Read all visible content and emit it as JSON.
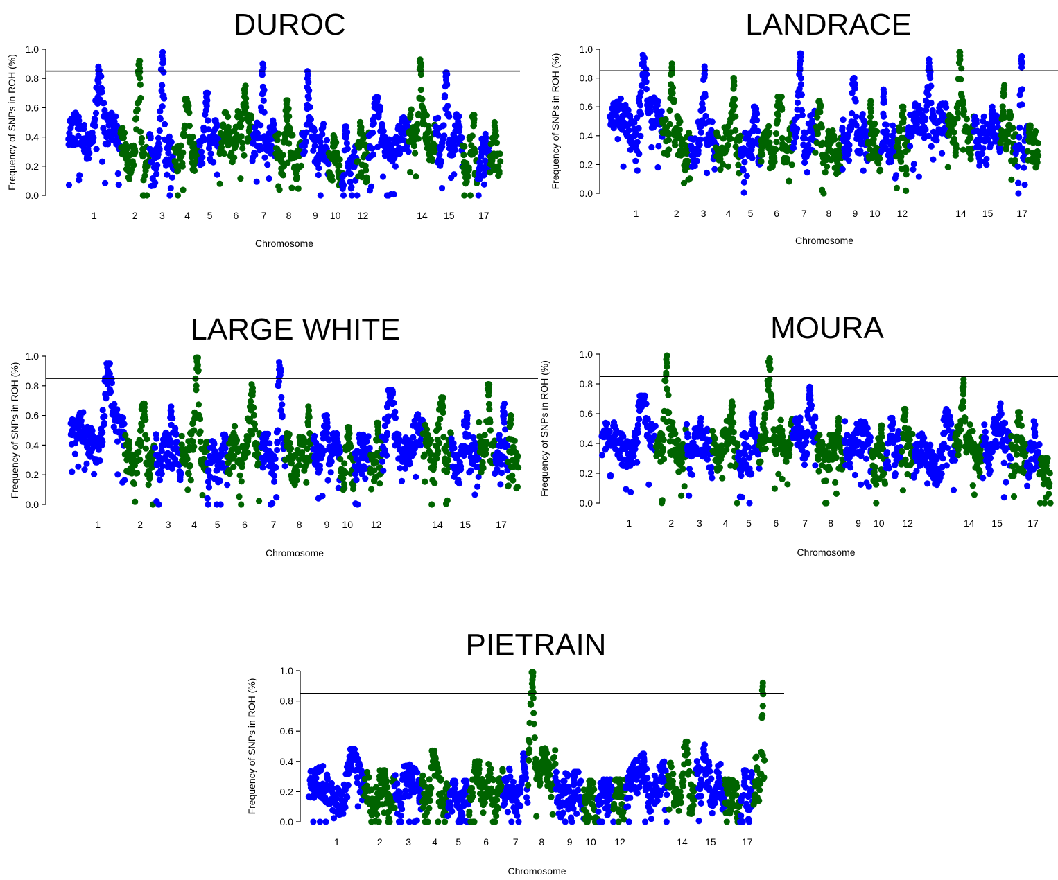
{
  "colors": {
    "series_a": "#0000ff",
    "series_b": "#006400",
    "threshold_line": "#000000"
  },
  "chart_data": [
    {
      "type": "scatter",
      "title": "DUROC",
      "xlabel": "Chromosome",
      "ylabel": "Frequency of SNPs in ROH (%)",
      "ylim": [
        0,
        1.0
      ],
      "yticks": [
        "0.0",
        "0.2",
        "0.4",
        "0.6",
        "0.8",
        "1.0"
      ],
      "xtick_labels": [
        "1",
        "2",
        "3",
        "4",
        "5",
        "6",
        "7",
        "8",
        "9",
        "10",
        "12",
        "14",
        "15",
        "17"
      ],
      "threshold": 0.85,
      "chromosomes": [
        {
          "chr": "1",
          "color": "blue",
          "level": 0.38,
          "peak": 0.88
        },
        {
          "chr": "2",
          "color": "green",
          "level": 0.28,
          "peak": 0.92
        },
        {
          "chr": "3",
          "color": "blue",
          "level": 0.25,
          "peak": 0.98
        },
        {
          "chr": "4",
          "color": "green",
          "level": 0.32,
          "peak": 0.66
        },
        {
          "chr": "5",
          "color": "blue",
          "level": 0.35,
          "peak": 0.7
        },
        {
          "chr": "6",
          "color": "green",
          "level": 0.4,
          "peak": 0.75
        },
        {
          "chr": "7",
          "color": "blue",
          "level": 0.33,
          "peak": 0.9
        },
        {
          "chr": "8",
          "color": "green",
          "level": 0.28,
          "peak": 0.65
        },
        {
          "chr": "9",
          "color": "blue",
          "level": 0.32,
          "peak": 0.85
        },
        {
          "chr": "10",
          "color": "green",
          "level": 0.22,
          "peak": 0.41
        },
        {
          "chr": "11",
          "color": "blue",
          "level": 0.22,
          "peak": 0.47
        },
        {
          "chr": "12",
          "color": "green",
          "level": 0.25,
          "peak": 0.5
        },
        {
          "chr": "13",
          "color": "blue",
          "level": 0.35,
          "peak": 0.67
        },
        {
          "chr": "14",
          "color": "green",
          "level": 0.4,
          "peak": 0.93
        },
        {
          "chr": "15",
          "color": "blue",
          "level": 0.38,
          "peak": 0.84
        },
        {
          "chr": "16",
          "color": "green",
          "level": 0.25,
          "peak": 0.55
        },
        {
          "chr": "17",
          "color": "blue",
          "level": 0.22,
          "peak": 0.42
        },
        {
          "chr": "18",
          "color": "green",
          "level": 0.25,
          "peak": 0.5
        }
      ]
    },
    {
      "type": "scatter",
      "title": "LANDRACE",
      "xlabel": "Chromosome",
      "ylabel": "Frequency of SNPs in ROH (%)",
      "ylim": [
        0,
        1.0
      ],
      "yticks": [
        "0.0",
        "0.2",
        "0.4",
        "0.6",
        "0.8",
        "1.0"
      ],
      "xtick_labels": [
        "1",
        "2",
        "3",
        "4",
        "5",
        "6",
        "7",
        "8",
        "9",
        "10",
        "12",
        "14",
        "15",
        "17"
      ],
      "threshold": 0.85,
      "chromosomes": [
        {
          "chr": "1",
          "color": "blue",
          "level": 0.48,
          "peak": 0.96
        },
        {
          "chr": "2",
          "color": "green",
          "level": 0.35,
          "peak": 0.9
        },
        {
          "chr": "3",
          "color": "blue",
          "level": 0.35,
          "peak": 0.88
        },
        {
          "chr": "4",
          "color": "green",
          "level": 0.35,
          "peak": 0.8
        },
        {
          "chr": "5",
          "color": "blue",
          "level": 0.3,
          "peak": 0.6
        },
        {
          "chr": "6",
          "color": "green",
          "level": 0.35,
          "peak": 0.67
        },
        {
          "chr": "7",
          "color": "blue",
          "level": 0.4,
          "peak": 0.97
        },
        {
          "chr": "8",
          "color": "green",
          "level": 0.3,
          "peak": 0.64
        },
        {
          "chr": "9",
          "color": "blue",
          "level": 0.38,
          "peak": 0.8
        },
        {
          "chr": "10",
          "color": "green",
          "level": 0.32,
          "peak": 0.64
        },
        {
          "chr": "11",
          "color": "blue",
          "level": 0.3,
          "peak": 0.72
        },
        {
          "chr": "12",
          "color": "green",
          "level": 0.3,
          "peak": 0.6
        },
        {
          "chr": "13",
          "color": "blue",
          "level": 0.45,
          "peak": 0.93
        },
        {
          "chr": "14",
          "color": "green",
          "level": 0.42,
          "peak": 0.98
        },
        {
          "chr": "15",
          "color": "blue",
          "level": 0.38,
          "peak": 0.6
        },
        {
          "chr": "16",
          "color": "green",
          "level": 0.38,
          "peak": 0.75
        },
        {
          "chr": "17",
          "color": "blue",
          "level": 0.35,
          "peak": 0.95
        },
        {
          "chr": "18",
          "color": "green",
          "level": 0.3,
          "peak": 0.47
        }
      ]
    },
    {
      "type": "scatter",
      "title": "LARGE WHITE",
      "xlabel": "Chromosome",
      "ylabel": "Frequency of SNPs in ROH (%)",
      "ylim": [
        0,
        1.0
      ],
      "yticks": [
        "0.0",
        "0.2",
        "0.4",
        "0.6",
        "0.8",
        "1.0"
      ],
      "xtick_labels": [
        "1",
        "2",
        "3",
        "4",
        "5",
        "6",
        "7",
        "8",
        "9",
        "10",
        "12",
        "14",
        "15",
        "17"
      ],
      "threshold": 0.85,
      "chromosomes": [
        {
          "chr": "1",
          "color": "blue",
          "level": 0.45,
          "peak": 0.95
        },
        {
          "chr": "2",
          "color": "green",
          "level": 0.3,
          "peak": 0.68
        },
        {
          "chr": "3",
          "color": "blue",
          "level": 0.32,
          "peak": 0.66
        },
        {
          "chr": "4",
          "color": "green",
          "level": 0.38,
          "peak": 0.99
        },
        {
          "chr": "5",
          "color": "blue",
          "level": 0.28,
          "peak": 0.47
        },
        {
          "chr": "6",
          "color": "green",
          "level": 0.35,
          "peak": 0.81
        },
        {
          "chr": "7",
          "color": "blue",
          "level": 0.32,
          "peak": 0.96
        },
        {
          "chr": "8",
          "color": "green",
          "level": 0.3,
          "peak": 0.66
        },
        {
          "chr": "9",
          "color": "blue",
          "level": 0.35,
          "peak": 0.6
        },
        {
          "chr": "10",
          "color": "green",
          "level": 0.28,
          "peak": 0.52
        },
        {
          "chr": "11",
          "color": "blue",
          "level": 0.3,
          "peak": 0.47
        },
        {
          "chr": "12",
          "color": "green",
          "level": 0.3,
          "peak": 0.55
        },
        {
          "chr": "13",
          "color": "blue",
          "level": 0.42,
          "peak": 0.77
        },
        {
          "chr": "14",
          "color": "green",
          "level": 0.38,
          "peak": 0.72
        },
        {
          "chr": "15",
          "color": "blue",
          "level": 0.3,
          "peak": 0.62
        },
        {
          "chr": "16",
          "color": "green",
          "level": 0.4,
          "peak": 0.81
        },
        {
          "chr": "17",
          "color": "blue",
          "level": 0.3,
          "peak": 0.68
        },
        {
          "chr": "18",
          "color": "green",
          "level": 0.28,
          "peak": 0.6
        }
      ]
    },
    {
      "type": "scatter",
      "title": "MOURA",
      "xlabel": "Chromosome",
      "ylabel": "Frequency of SNPs in ROH (%)",
      "ylim": [
        0,
        1.0
      ],
      "yticks": [
        "0.0",
        "0.2",
        "0.4",
        "0.6",
        "0.8",
        "1.0"
      ],
      "xtick_labels": [
        "1",
        "2",
        "3",
        "4",
        "5",
        "6",
        "7",
        "8",
        "9",
        "10",
        "12",
        "14",
        "15",
        "17"
      ],
      "threshold": 0.85,
      "chromosomes": [
        {
          "chr": "1",
          "color": "blue",
          "level": 0.4,
          "peak": 0.72
        },
        {
          "chr": "2",
          "color": "green",
          "level": 0.35,
          "peak": 0.99
        },
        {
          "chr": "3",
          "color": "blue",
          "level": 0.35,
          "peak": 0.57
        },
        {
          "chr": "4",
          "color": "green",
          "level": 0.38,
          "peak": 0.68
        },
        {
          "chr": "5",
          "color": "blue",
          "level": 0.32,
          "peak": 0.6
        },
        {
          "chr": "6",
          "color": "green",
          "level": 0.4,
          "peak": 0.97
        },
        {
          "chr": "7",
          "color": "blue",
          "level": 0.42,
          "peak": 0.78
        },
        {
          "chr": "8",
          "color": "green",
          "level": 0.32,
          "peak": 0.57
        },
        {
          "chr": "9",
          "color": "blue",
          "level": 0.38,
          "peak": 0.55
        },
        {
          "chr": "10",
          "color": "green",
          "level": 0.3,
          "peak": 0.52
        },
        {
          "chr": "11",
          "color": "blue",
          "level": 0.35,
          "peak": 0.57
        },
        {
          "chr": "12",
          "color": "green",
          "level": 0.35,
          "peak": 0.63
        },
        {
          "chr": "13",
          "color": "blue",
          "level": 0.3,
          "peak": 0.63
        },
        {
          "chr": "14",
          "color": "green",
          "level": 0.35,
          "peak": 0.83
        },
        {
          "chr": "15",
          "color": "blue",
          "level": 0.38,
          "peak": 0.67
        },
        {
          "chr": "16",
          "color": "green",
          "level": 0.35,
          "peak": 0.61
        },
        {
          "chr": "17",
          "color": "blue",
          "level": 0.28,
          "peak": 0.55
        },
        {
          "chr": "18",
          "color": "green",
          "level": 0.22,
          "peak": 0.3
        }
      ]
    },
    {
      "type": "scatter",
      "title": "PIETRAIN",
      "xlabel": "Chromosome",
      "ylabel": "Frequency of SNPs in ROH (%)",
      "ylim": [
        0,
        1.0
      ],
      "yticks": [
        "0.0",
        "0.2",
        "0.4",
        "0.6",
        "0.8",
        "1.0"
      ],
      "xtick_labels": [
        "1",
        "2",
        "3",
        "4",
        "5",
        "6",
        "7",
        "8",
        "9",
        "10",
        "12",
        "14",
        "15",
        "17"
      ],
      "threshold": 0.85,
      "chromosomes": [
        {
          "chr": "1",
          "color": "blue",
          "level": 0.2,
          "peak": 0.48
        },
        {
          "chr": "2",
          "color": "green",
          "level": 0.17,
          "peak": 0.34
        },
        {
          "chr": "3",
          "color": "blue",
          "level": 0.2,
          "peak": 0.38
        },
        {
          "chr": "4",
          "color": "green",
          "level": 0.22,
          "peak": 0.47
        },
        {
          "chr": "5",
          "color": "blue",
          "level": 0.15,
          "peak": 0.27
        },
        {
          "chr": "6",
          "color": "green",
          "level": 0.2,
          "peak": 0.4
        },
        {
          "chr": "7",
          "color": "blue",
          "level": 0.18,
          "peak": 0.45
        },
        {
          "chr": "8",
          "color": "green",
          "level": 0.35,
          "peak": 0.99
        },
        {
          "chr": "9",
          "color": "blue",
          "level": 0.18,
          "peak": 0.33
        },
        {
          "chr": "10",
          "color": "green",
          "level": 0.15,
          "peak": 0.27
        },
        {
          "chr": "11",
          "color": "blue",
          "level": 0.17,
          "peak": 0.28
        },
        {
          "chr": "12",
          "color": "green",
          "level": 0.15,
          "peak": 0.28
        },
        {
          "chr": "13",
          "color": "blue",
          "level": 0.22,
          "peak": 0.45
        },
        {
          "chr": "14",
          "color": "green",
          "level": 0.22,
          "peak": 0.53
        },
        {
          "chr": "15",
          "color": "blue",
          "level": 0.22,
          "peak": 0.51
        },
        {
          "chr": "16",
          "color": "green",
          "level": 0.15,
          "peak": 0.28
        },
        {
          "chr": "17",
          "color": "blue",
          "level": 0.15,
          "peak": 0.34
        },
        {
          "chr": "18",
          "color": "green",
          "level": 0.25,
          "peak": 0.92
        }
      ]
    }
  ]
}
